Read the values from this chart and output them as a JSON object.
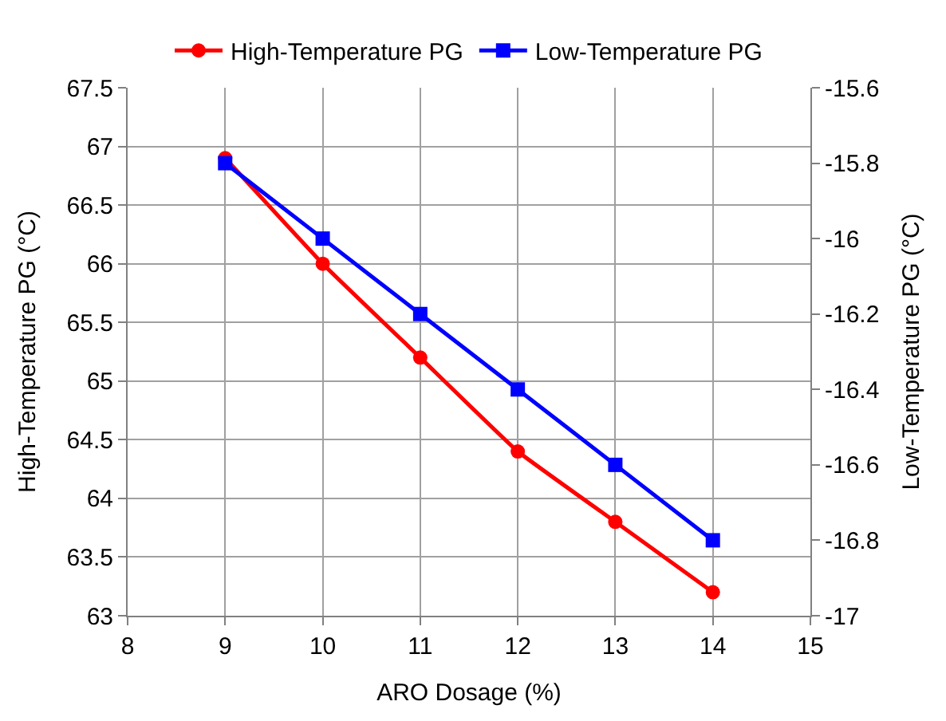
{
  "chart_data": {
    "type": "line",
    "xlabel": "ARO Dosage (%)",
    "ylabel": "High-Temperature PG (°C)",
    "y2label": "Low-Temperature PG (°C)",
    "x": [
      9,
      10,
      11,
      12,
      13,
      14
    ],
    "series": [
      {
        "name": "High-Temperature PG",
        "color": "#ff0000",
        "values": [
          66.9,
          66.0,
          65.2,
          64.4,
          63.8,
          63.2
        ],
        "marker": "circle"
      },
      {
        "name": "Low-Temperature PG",
        "color": "#0000ff",
        "values": [
          -15.8,
          -16.0,
          -16.2,
          -16.4,
          -16.6,
          -16.8
        ],
        "marker": "square",
        "axis": "y2"
      }
    ],
    "xlim": [
      8,
      15
    ],
    "xticks": [
      8,
      9,
      10,
      11,
      12,
      13,
      14,
      15
    ],
    "ylim": [
      63,
      67.5
    ],
    "yticks": [
      63,
      63.5,
      64,
      64.5,
      65,
      65.5,
      66,
      66.5,
      67,
      67.5
    ],
    "y2lim": [
      -17,
      -15.6
    ],
    "y2ticks": [
      -17,
      -16.8,
      -16.6,
      -16.4,
      -16.2,
      -16,
      -15.8,
      -15.6
    ],
    "grid": true,
    "legend": "top",
    "line_style": "solid"
  }
}
